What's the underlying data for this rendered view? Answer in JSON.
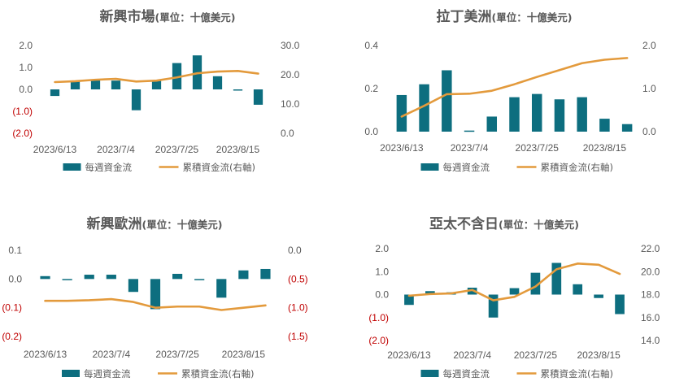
{
  "legend": {
    "bar_label": "每週資金流",
    "line_label": "累積資金流(右軸)"
  },
  "colors": {
    "bar": "#0d6e7f",
    "line": "#e39a3c",
    "negative_tick": "#c00000",
    "text": "#595959"
  },
  "chart_data": [
    {
      "type": "bar+line",
      "title": "新興市場",
      "unit": "(單位：十億美元)",
      "x_tick_labels": [
        "2023/6/13",
        "2023/7/4",
        "2023/7/25",
        "2023/8/15"
      ],
      "y_left": {
        "ticks": [
          2.0,
          1.0,
          0.0,
          -1.0,
          -2.0
        ],
        "labels": [
          "2.0",
          "1.0",
          "0.0",
          "(1.0)",
          "(2.0)"
        ],
        "min": -2.0,
        "max": 2.0
      },
      "y_right": {
        "ticks": [
          30.0,
          20.0,
          10.0,
          0.0
        ],
        "labels": [
          "30.0",
          "20.0",
          "10.0",
          "0.0"
        ],
        "min": 0.0,
        "max": 30.0
      },
      "series": [
        {
          "kind": "bar",
          "legend": "每週資金流",
          "values": [
            -0.3,
            0.35,
            0.45,
            0.4,
            -0.95,
            0.4,
            1.2,
            1.55,
            0.6,
            -0.05,
            -0.7
          ]
        },
        {
          "kind": "line",
          "legend": "累積資金流(右軸)",
          "values": [
            17.5,
            17.8,
            18.3,
            18.6,
            17.7,
            18.0,
            19.1,
            20.5,
            21.1,
            21.3,
            20.4
          ]
        }
      ]
    },
    {
      "type": "bar+line",
      "title": "拉丁美洲",
      "unit": "(單位：十億美元)",
      "x_tick_labels": [
        "2023/6/13",
        "2023/7/4",
        "2023/7/25",
        "2023/8/15"
      ],
      "y_left": {
        "ticks": [
          0.4,
          0.2,
          0.0
        ],
        "labels": [
          "0.4",
          "0.2",
          "0.0"
        ],
        "min": 0.0,
        "max": 0.4
      },
      "y_right": {
        "ticks": [
          2.0,
          1.0,
          0.0
        ],
        "labels": [
          "2.0",
          "1.0",
          "0.0"
        ],
        "min": 0.0,
        "max": 2.0
      },
      "series": [
        {
          "kind": "bar",
          "legend": "每週資金流",
          "values": [
            0.17,
            0.22,
            0.285,
            0.005,
            0.07,
            0.16,
            0.175,
            0.15,
            0.16,
            0.06,
            0.035
          ]
        },
        {
          "kind": "line",
          "legend": "累積資金流(右軸)",
          "values": [
            0.35,
            0.6,
            0.87,
            0.88,
            0.95,
            1.1,
            1.27,
            1.43,
            1.59,
            1.67,
            1.71
          ]
        }
      ]
    },
    {
      "type": "bar+line",
      "title": "新興歐洲",
      "unit": "(單位：十億美元)",
      "x_tick_labels": [
        "2023/6/13",
        "2023/7/4",
        "2023/7/25",
        "2023/8/15"
      ],
      "y_left": {
        "ticks": [
          0.1,
          0.0,
          -0.1,
          -0.2
        ],
        "labels": [
          "0.1",
          "0.0",
          "(0.1)",
          "(0.2)"
        ],
        "min": -0.2,
        "max": 0.1
      },
      "y_right": {
        "ticks": [
          0.0,
          -0.5,
          -1.0,
          -1.5
        ],
        "labels": [
          "0.0",
          "(0.5)",
          "(1.0)",
          "(1.5)"
        ],
        "min": -1.5,
        "max": 0.0
      },
      "series": [
        {
          "kind": "bar",
          "legend": "每週資金流",
          "values": [
            0.01,
            0.0,
            0.015,
            0.015,
            -0.045,
            -0.105,
            0.018,
            0.0,
            -0.065,
            0.03,
            0.035
          ]
        },
        {
          "kind": "line",
          "legend": "累積資金流(右軸)",
          "values": [
            -0.88,
            -0.88,
            -0.87,
            -0.85,
            -0.9,
            -1.0,
            -0.98,
            -0.98,
            -1.04,
            -1.0,
            -0.96
          ]
        }
      ]
    },
    {
      "type": "bar+line",
      "title": "亞太不含日",
      "unit": "(單位：十億美元)",
      "x_tick_labels": [
        "2023/6/13",
        "2023/7/4",
        "2023/7/25",
        "2023/8/15"
      ],
      "y_left": {
        "ticks": [
          2.0,
          1.0,
          0.0,
          -1.0,
          -2.0
        ],
        "labels": [
          "2.0",
          "1.0",
          "0.0",
          "(1.0)",
          "(2.0)"
        ],
        "min": -2.0,
        "max": 2.0
      },
      "y_right": {
        "ticks": [
          22.0,
          20.0,
          18.0,
          16.0,
          14.0
        ],
        "labels": [
          "22.0",
          "20.0",
          "18.0",
          "16.0",
          "14.0"
        ],
        "min": 14.0,
        "max": 22.0
      },
      "series": [
        {
          "kind": "bar",
          "legend": "每週資金流",
          "values": [
            -0.45,
            0.15,
            0.1,
            0.3,
            -1.0,
            0.28,
            0.95,
            1.38,
            0.45,
            -0.15,
            -0.85
          ]
        },
        {
          "kind": "line",
          "legend": "累積資金流(右軸)",
          "values": [
            17.9,
            18.05,
            18.1,
            18.4,
            17.5,
            17.8,
            18.7,
            20.2,
            20.7,
            20.6,
            19.8
          ]
        }
      ]
    }
  ]
}
